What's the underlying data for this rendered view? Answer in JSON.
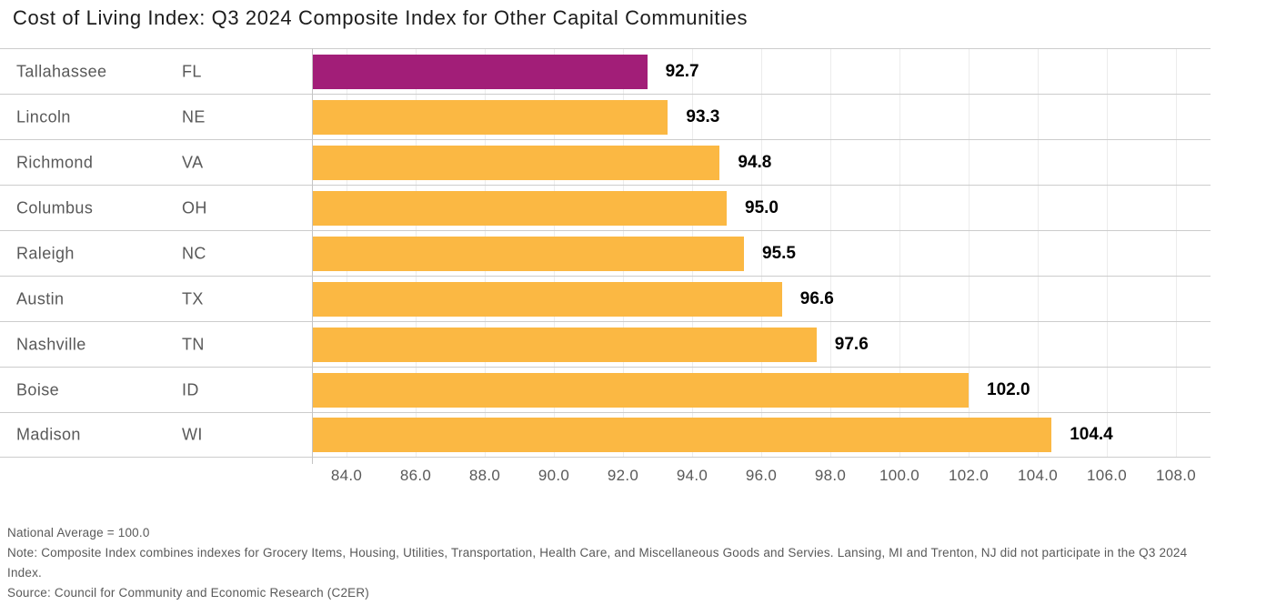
{
  "title": "Cost of Living Index: Q3 2024 Composite Index for Other Capital Communities",
  "chart_data": {
    "type": "bar",
    "orientation": "horizontal",
    "title": "Cost of Living Index: Q3 2024 Composite Index for Other Capital Communities",
    "categories": [
      "Tallahassee FL",
      "Lincoln NE",
      "Richmond VA",
      "Columbus OH",
      "Raleigh NC",
      "Austin TX",
      "Nashville TN",
      "Boise ID",
      "Madison WI"
    ],
    "values": [
      92.7,
      93.3,
      94.8,
      95.0,
      95.5,
      96.6,
      97.6,
      102.0,
      104.4
    ],
    "highlight_index": 0,
    "rows": [
      {
        "city": "Tallahassee",
        "state": "FL",
        "value": 92.7,
        "value_label": "92.7",
        "highlight": true
      },
      {
        "city": "Lincoln",
        "state": "NE",
        "value": 93.3,
        "value_label": "93.3",
        "highlight": false
      },
      {
        "city": "Richmond",
        "state": "VA",
        "value": 94.8,
        "value_label": "94.8",
        "highlight": false
      },
      {
        "city": "Columbus",
        "state": "OH",
        "value": 95.0,
        "value_label": "95.0",
        "highlight": false
      },
      {
        "city": "Raleigh",
        "state": "NC",
        "value": 95.5,
        "value_label": "95.5",
        "highlight": false
      },
      {
        "city": "Austin",
        "state": "TX",
        "value": 96.6,
        "value_label": "96.6",
        "highlight": false
      },
      {
        "city": "Nashville",
        "state": "TN",
        "value": 97.6,
        "value_label": "97.6",
        "highlight": false
      },
      {
        "city": "Boise",
        "state": "ID",
        "value": 102.0,
        "value_label": "102.0",
        "highlight": false
      },
      {
        "city": "Madison",
        "state": "WI",
        "value": 104.4,
        "value_label": "104.4",
        "highlight": false
      }
    ],
    "xlim": [
      83,
      109
    ],
    "x_ticks": [
      84,
      86,
      88,
      90,
      92,
      94,
      96,
      98,
      100,
      102,
      104,
      106,
      108
    ],
    "x_tick_labels": [
      "84.0",
      "86.0",
      "88.0",
      "90.0",
      "92.0",
      "94.0",
      "96.0",
      "98.0",
      "100.0",
      "102.0",
      "104.0",
      "106.0",
      "108.0"
    ],
    "xlabel": "",
    "ylabel": "",
    "grid": "vertical-at-ticks",
    "legend": "none",
    "colors": {
      "highlight_bar": "#a21e78",
      "bar": "#fbb843",
      "value_label": "#000000",
      "category_label": "#595959",
      "tick_label": "#595959",
      "row_separator": "#cccccc",
      "gridline": "#ececec",
      "title": "#1c1c1c"
    }
  },
  "footnotes": {
    "national_average": "National Average = 100.0",
    "note": "Note: Composite Index combines indexes for Grocery Items, Housing, Utilities, Transportation, Health Care, and Miscellaneous Goods and Servies. Lansing, MI and Trenton, NJ did not participate in the Q3 2024 Index.",
    "source": "Source: Council for Community and Economic Research (C2ER)"
  }
}
